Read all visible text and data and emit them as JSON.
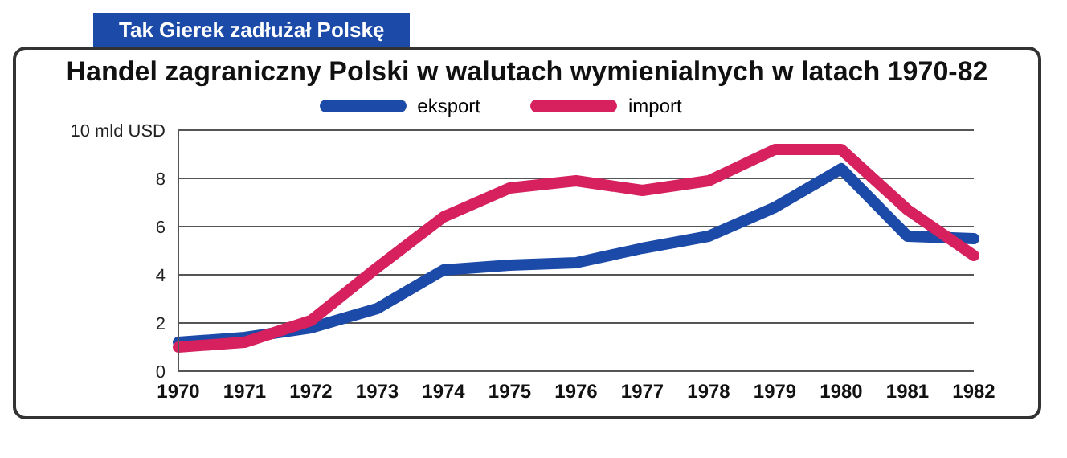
{
  "chart_data": {
    "type": "line",
    "title": "Handel zagraniczny Polski w walutach wymienialnych w latach 1970-82",
    "subtitle": "Tak Gierek zadłużał Polskę",
    "categories": [
      "1970",
      "1971",
      "1972",
      "1973",
      "1974",
      "1975",
      "1976",
      "1977",
      "1978",
      "1979",
      "1980",
      "1981",
      "1982"
    ],
    "series": [
      {
        "name": "eksport",
        "color": "#1c4aa8",
        "values": [
          1.2,
          1.4,
          1.8,
          2.6,
          4.2,
          4.4,
          4.5,
          5.1,
          5.6,
          6.8,
          8.4,
          5.6,
          5.5
        ]
      },
      {
        "name": "import",
        "color": "#d6215e",
        "values": [
          1.0,
          1.2,
          2.1,
          4.3,
          6.4,
          7.6,
          7.9,
          7.5,
          7.9,
          9.2,
          9.2,
          6.7,
          4.8
        ]
      }
    ],
    "ylim": [
      0,
      10
    ],
    "yticks": [
      0,
      2,
      4,
      6,
      8,
      {
        "value": 10,
        "label": "10 mld USD"
      }
    ],
    "grid": "y",
    "legend": "top",
    "marker": "none",
    "line_style": "solid"
  }
}
